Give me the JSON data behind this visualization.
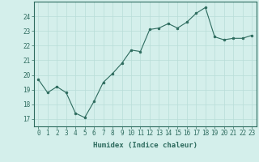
{
  "x": [
    0,
    1,
    2,
    3,
    4,
    5,
    6,
    7,
    8,
    9,
    10,
    11,
    12,
    13,
    14,
    15,
    16,
    17,
    18,
    19,
    20,
    21,
    22,
    23
  ],
  "y": [
    19.7,
    18.8,
    19.2,
    18.8,
    17.4,
    17.1,
    18.2,
    19.5,
    20.1,
    20.8,
    21.7,
    21.6,
    23.1,
    23.2,
    23.5,
    23.2,
    23.6,
    24.2,
    24.6,
    22.6,
    22.4,
    22.5,
    22.5,
    22.7
  ],
  "xlabel": "Humidex (Indice chaleur)",
  "line_color": "#2d6b5e",
  "marker_color": "#2d6b5e",
  "bg_color": "#d4efeb",
  "grid_color": "#b8ddd8",
  "axis_color": "#2d6b5e",
  "xlim": [
    -0.5,
    23.5
  ],
  "ylim": [
    16.5,
    25.0
  ],
  "yticks": [
    17,
    18,
    19,
    20,
    21,
    22,
    23,
    24
  ],
  "xticks": [
    0,
    1,
    2,
    3,
    4,
    5,
    6,
    7,
    8,
    9,
    10,
    11,
    12,
    13,
    14,
    15,
    16,
    17,
    18,
    19,
    20,
    21,
    22,
    23
  ],
  "tick_fontsize": 5.5,
  "label_fontsize": 6.5
}
